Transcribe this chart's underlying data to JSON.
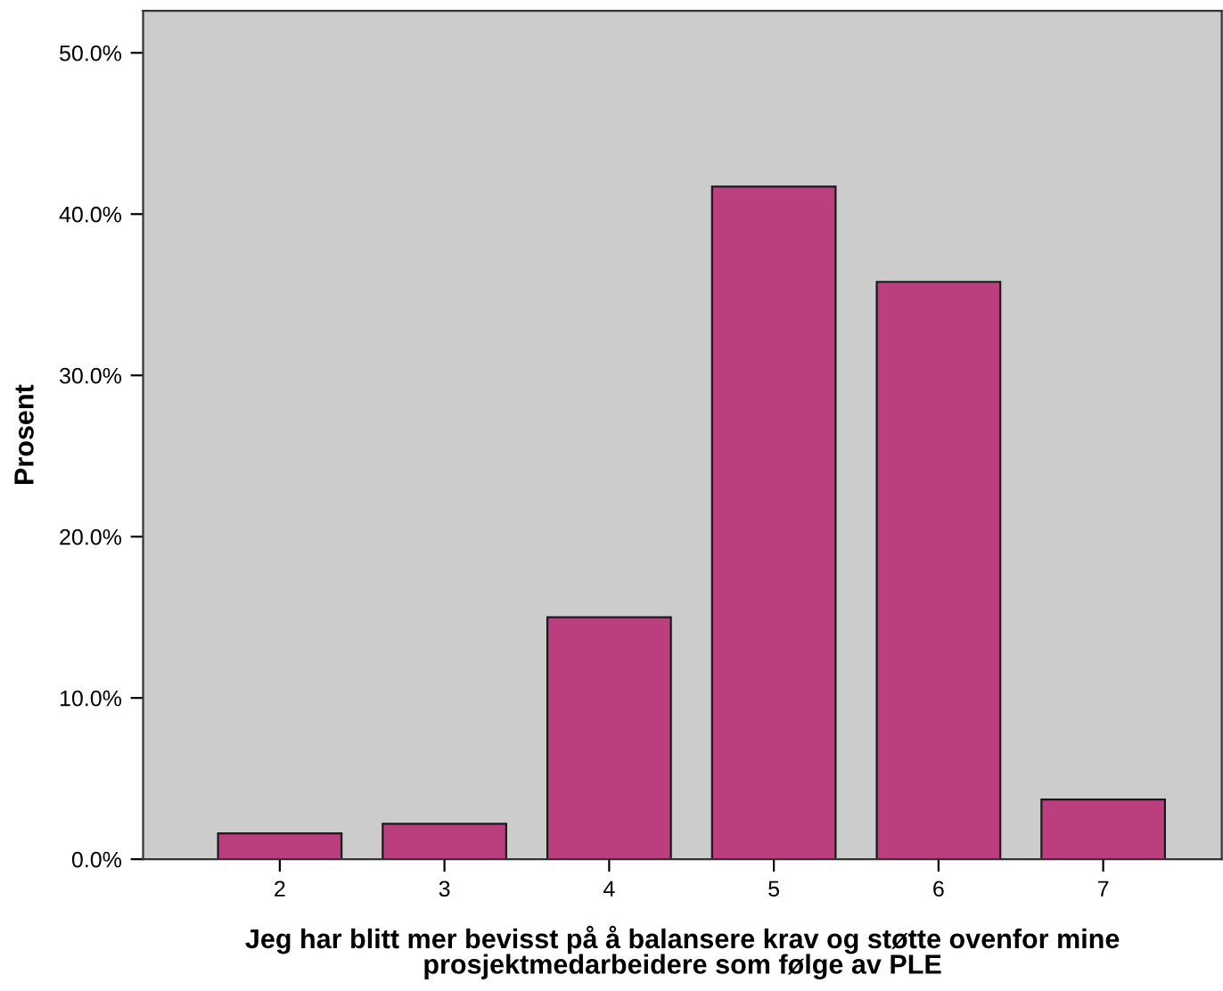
{
  "chart_data": {
    "type": "bar",
    "xlabel": "Jeg har blitt mer bevisst på å balansere krav og støtte ovenfor mine\nprosjektmedarbeidere som følge av PLE",
    "ylabel": "Prosent",
    "categories": [
      "2",
      "3",
      "4",
      "5",
      "6",
      "7"
    ],
    "values": [
      1.6,
      2.2,
      15.0,
      41.7,
      35.8,
      3.7
    ],
    "color": "#bb3e7e",
    "ylim": [
      0,
      52.6
    ],
    "yticks": [
      {
        "value": 0,
        "label": "0.0%"
      },
      {
        "value": 10,
        "label": "10.0%"
      },
      {
        "value": 20,
        "label": "20.0%"
      },
      {
        "value": 30,
        "label": "30.0%"
      },
      {
        "value": 40,
        "label": "40.0%"
      },
      {
        "value": 50,
        "label": "50.0%"
      }
    ],
    "grid": false
  }
}
